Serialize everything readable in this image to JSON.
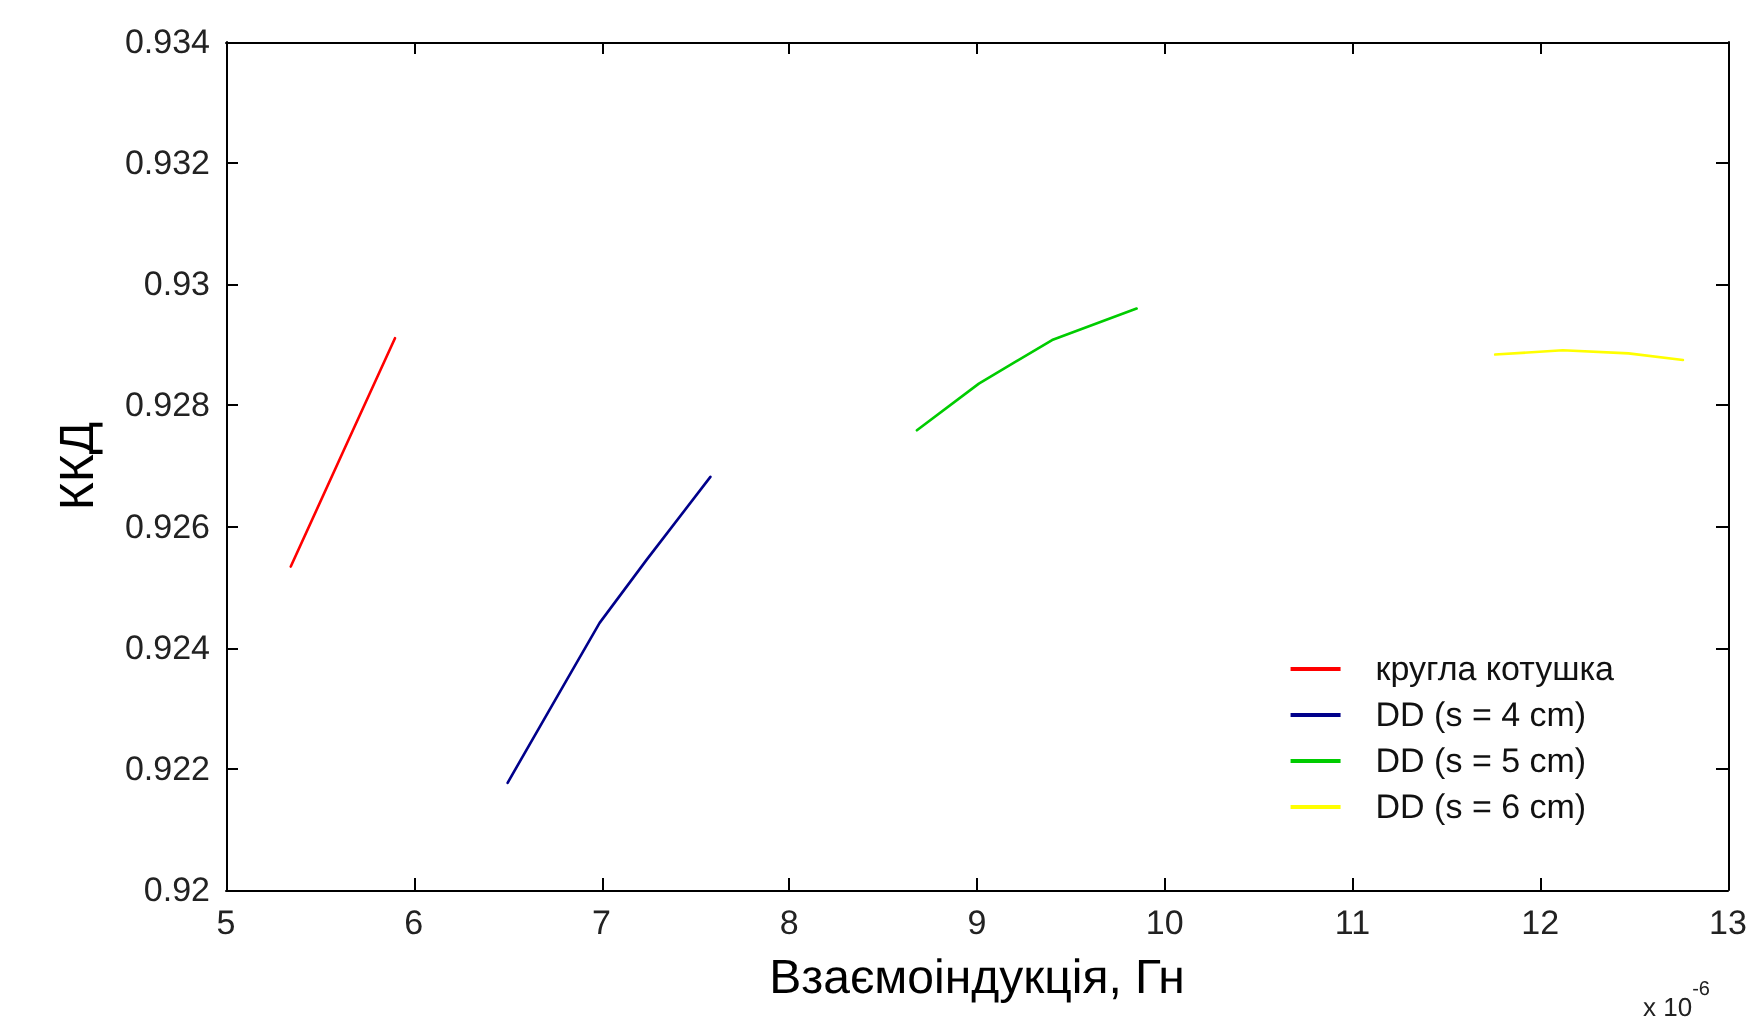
{
  "chart_data": {
    "type": "line",
    "xlabel": "Взаємоіндукція, Гн",
    "ylabel": "ККД",
    "annotations": [
      "x 10$^{-6}$"
    ],
    "xlim": [
      5,
      13
    ],
    "xticks": [
      5,
      6,
      7,
      8,
      9,
      10,
      11,
      12,
      13
    ],
    "ylim": [
      0.92,
      0.934
    ],
    "yticks": [
      0.92,
      0.922,
      0.924,
      0.926,
      0.928,
      0.93,
      0.932,
      0.934
    ],
    "grid": false,
    "legend": "bottom right",
    "marker": "none",
    "line_style": "solid",
    "series": [
      {
        "name": "кругла котушка",
        "color": "#ff0000",
        "x": [
          5.345,
          5.62,
          5.9
        ],
        "values": [
          0.92534,
          0.92721,
          0.92911
        ]
      },
      {
        "name": "DD (s = 4 cm)",
        "color": "#00008b",
        "x": [
          6.5,
          6.815,
          6.99,
          7.24,
          7.58
        ],
        "values": [
          0.92177,
          0.92347,
          0.92441,
          0.92545,
          0.92682
        ]
      },
      {
        "name": "DD (s = 5 cm)",
        "color": "#00cc00",
        "x": [
          8.68,
          9.01,
          9.4,
          9.85
        ],
        "values": [
          0.92759,
          0.92836,
          0.92908,
          0.9296
        ]
      },
      {
        "name": "DD (s = 6 cm)",
        "color": "#ffff00",
        "x": [
          11.76,
          12.12,
          12.47,
          12.76
        ],
        "values": [
          0.92884,
          0.92891,
          0.92886,
          0.92875
        ]
      }
    ]
  }
}
